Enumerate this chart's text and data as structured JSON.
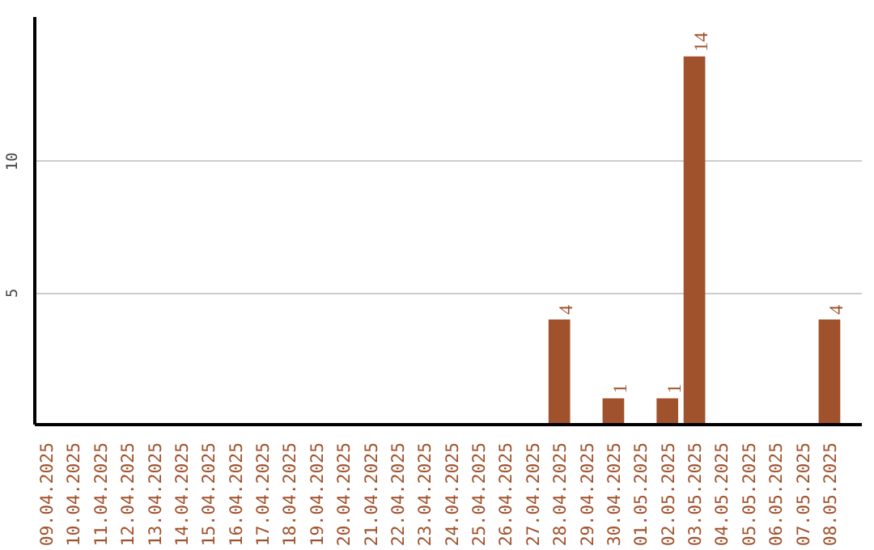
{
  "chart_data": {
    "type": "bar",
    "categories": [
      "09.04.2025",
      "10.04.2025",
      "11.04.2025",
      "12.04.2025",
      "13.04.2025",
      "14.04.2025",
      "15.04.2025",
      "16.04.2025",
      "17.04.2025",
      "18.04.2025",
      "19.04.2025",
      "20.04.2025",
      "21.04.2025",
      "22.04.2025",
      "23.04.2025",
      "24.04.2025",
      "25.04.2025",
      "26.04.2025",
      "27.04.2025",
      "28.04.2025",
      "29.04.2025",
      "30.04.2025",
      "01.05.2025",
      "02.05.2025",
      "03.05.2025",
      "04.05.2025",
      "05.05.2025",
      "06.05.2025",
      "07.05.2025",
      "08.05.2025"
    ],
    "values": [
      0,
      0,
      0,
      0,
      0,
      0,
      0,
      0,
      0,
      0,
      0,
      0,
      0,
      0,
      0,
      0,
      0,
      0,
      0,
      4,
      0,
      1,
      0,
      1,
      14,
      0,
      0,
      0,
      0,
      4
    ],
    "value_labels": [
      null,
      null,
      null,
      null,
      null,
      null,
      null,
      null,
      null,
      null,
      null,
      null,
      null,
      null,
      null,
      null,
      null,
      null,
      null,
      "4",
      null,
      "1",
      null,
      "1",
      "14",
      null,
      null,
      null,
      null,
      "4"
    ],
    "color": "#a0522d",
    "ylim": [
      0,
      15.5
    ],
    "yticks": [
      5,
      10
    ],
    "grid": "y"
  }
}
